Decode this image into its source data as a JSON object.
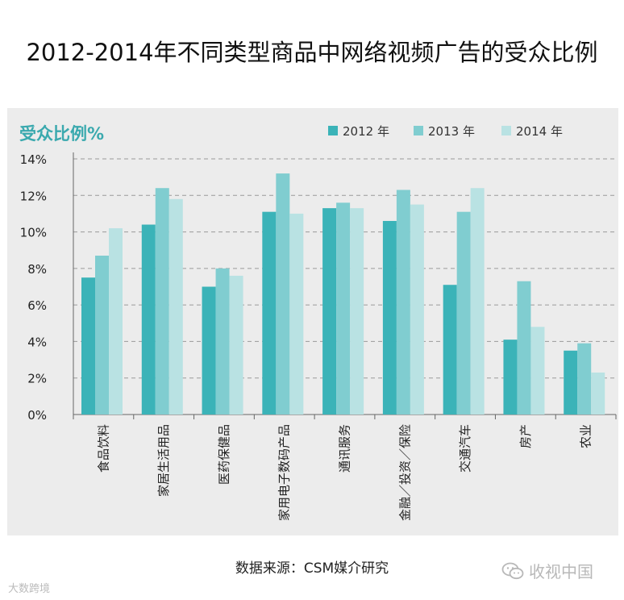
{
  "title": "2012-2014年不同类型商品中网络视频广告的受众比例",
  "source": "数据来源：CSM媒介研究",
  "watermark_left": "大数跨境",
  "watermark_right": "收视中国",
  "colors": {
    "s2012": "#3bb3b8",
    "s2013": "#80cdd0",
    "s2014": "#b9e2e3",
    "panel_bg": "#ececec",
    "accent_text": "#3aa9ae"
  },
  "chart_data": {
    "type": "bar",
    "ylabel": "受众比例%",
    "ylim": [
      0,
      14
    ],
    "yticks": [
      "0%",
      "2%",
      "4%",
      "6%",
      "8%",
      "10%",
      "12%",
      "14%"
    ],
    "grid": true,
    "legend_position": "top-right",
    "categories": [
      "食品饮料",
      "家居生活用品",
      "医药保健品",
      "家用电子数码产品",
      "通讯服务",
      "金融／投资／保险",
      "交通汽车",
      "房产",
      "农业"
    ],
    "series": [
      {
        "name": "2012 年",
        "color": "#3bb3b8",
        "values": [
          7.5,
          10.4,
          7.0,
          11.1,
          11.3,
          10.6,
          7.1,
          4.1,
          3.5
        ]
      },
      {
        "name": "2013 年",
        "color": "#80cdd0",
        "values": [
          8.7,
          12.4,
          8.0,
          13.2,
          11.6,
          12.3,
          11.1,
          7.3,
          3.9
        ]
      },
      {
        "name": "2014 年",
        "color": "#b9e2e3",
        "values": [
          10.2,
          11.8,
          7.6,
          11.0,
          11.3,
          11.5,
          12.4,
          4.8,
          2.3
        ]
      }
    ]
  }
}
